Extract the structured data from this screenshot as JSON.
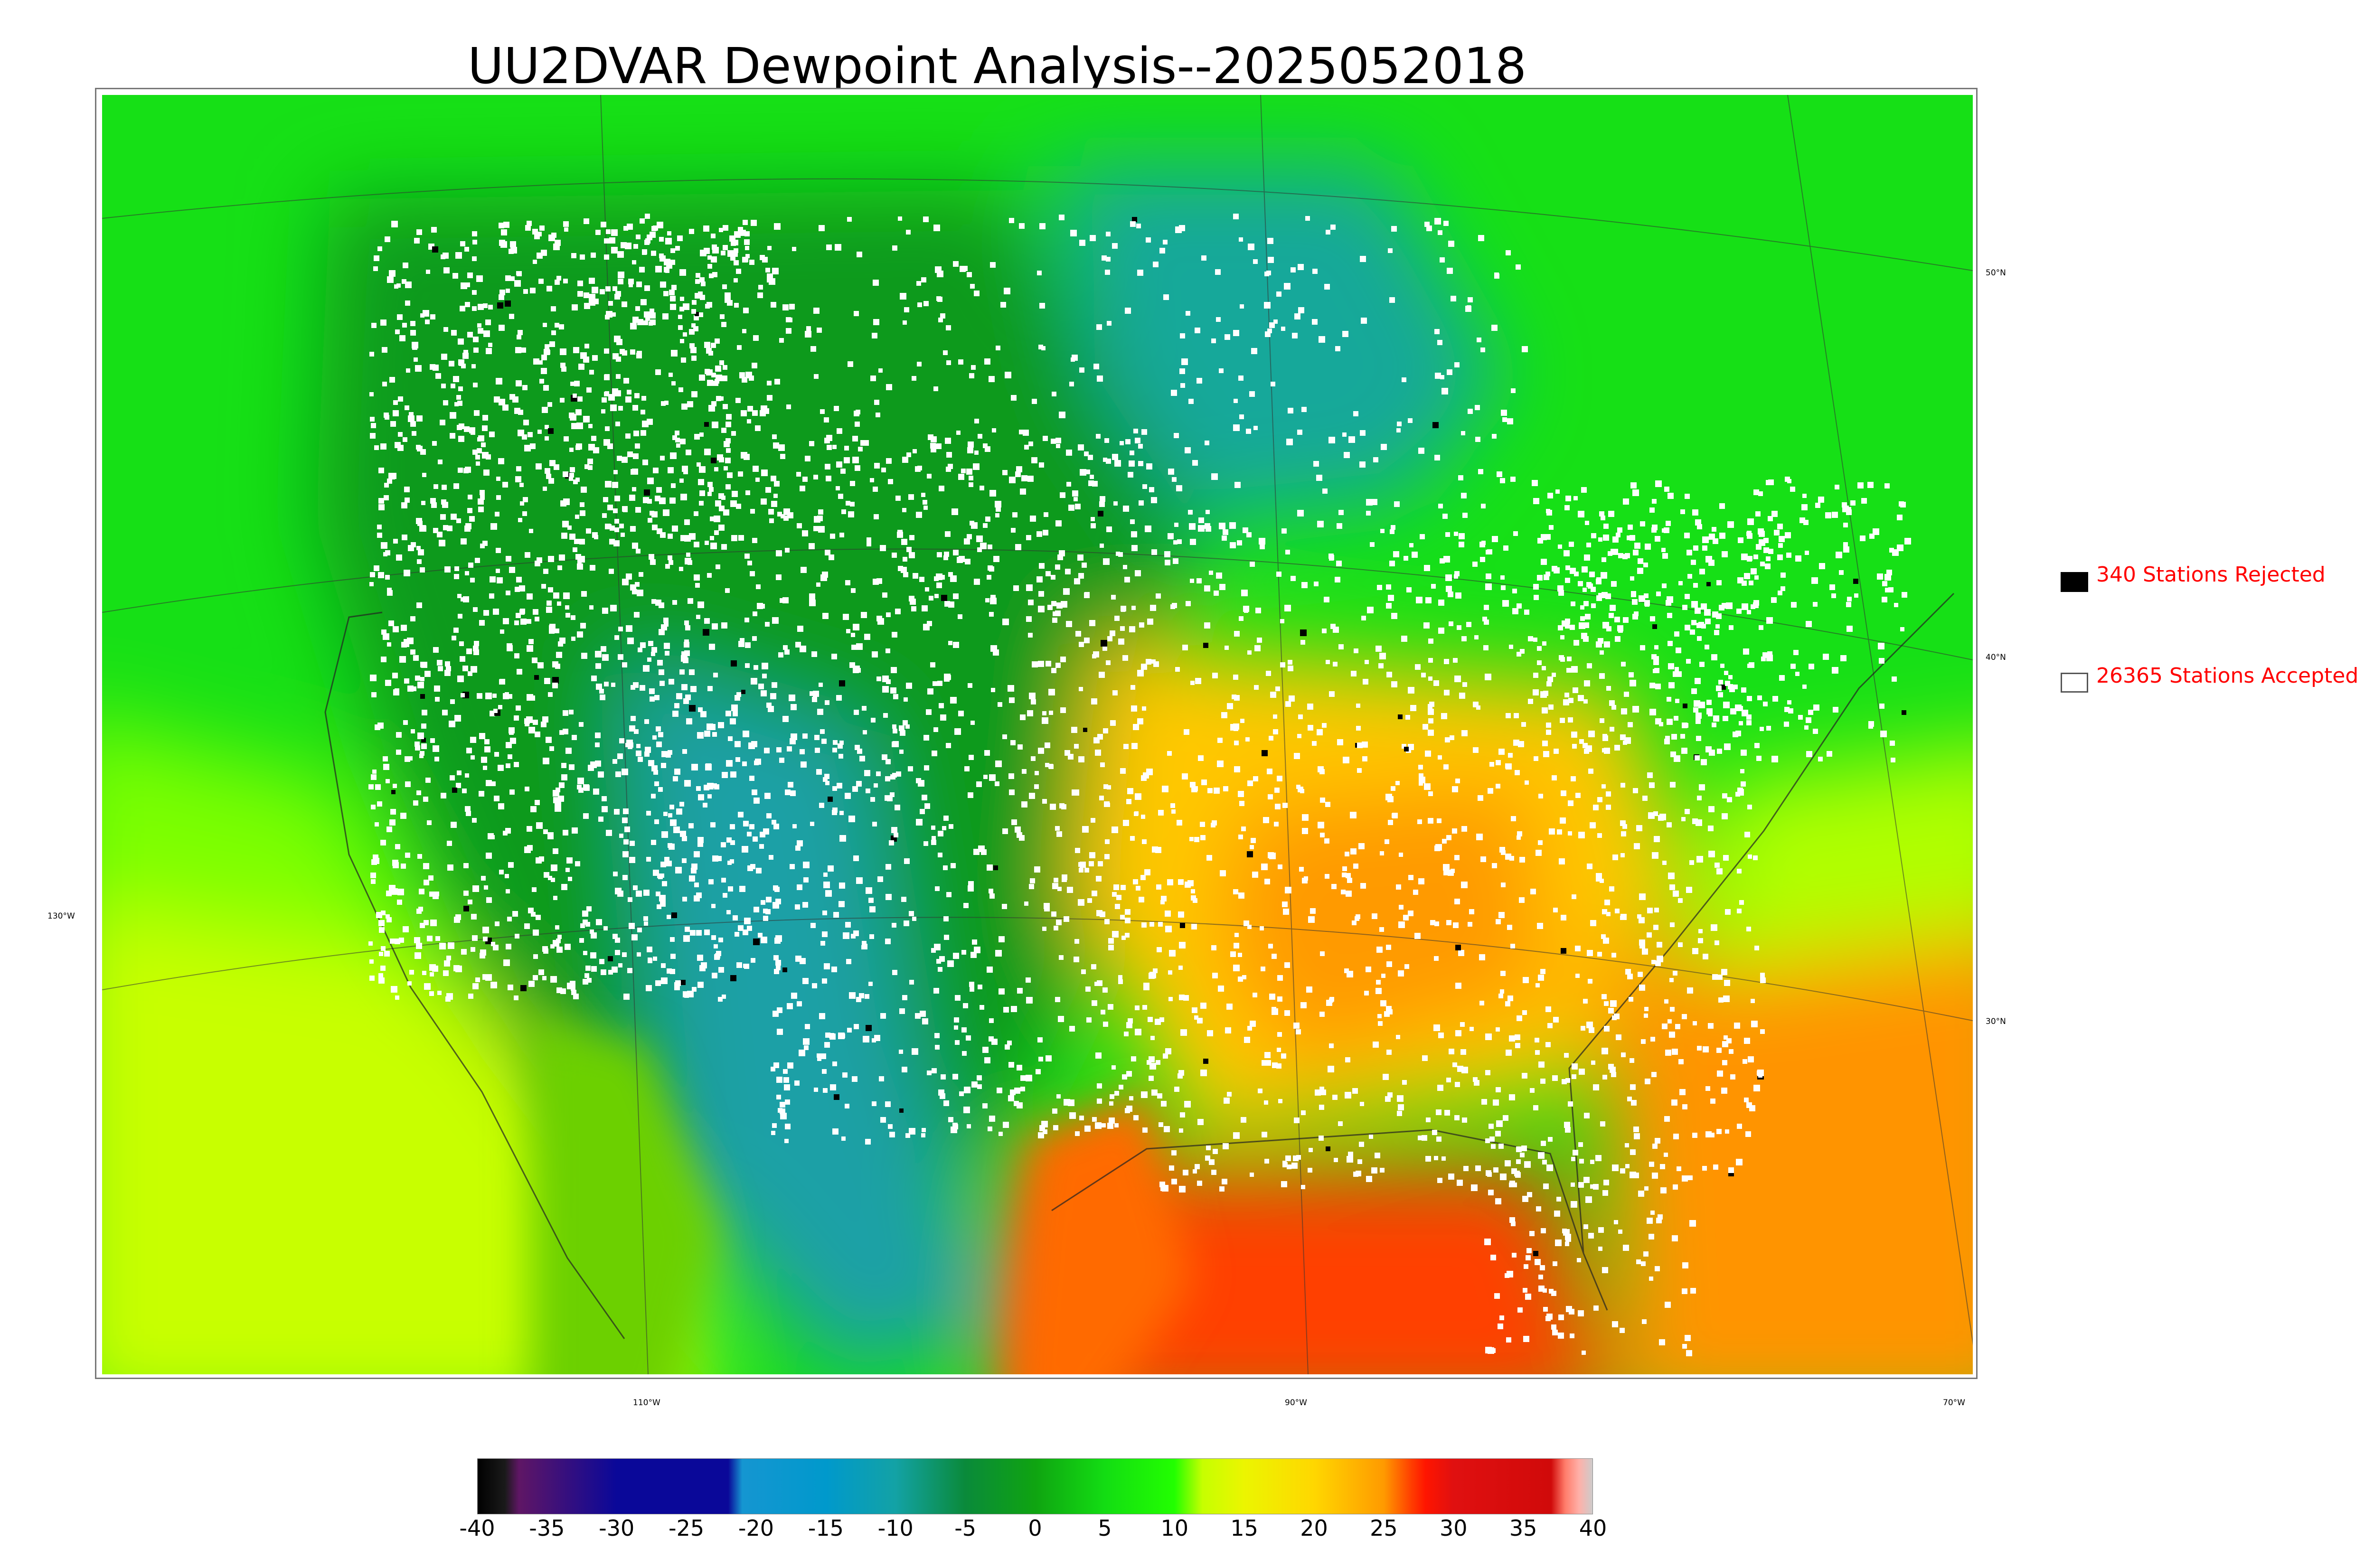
{
  "title": "UU2DVAR Dewpoint Analysis--2025052018",
  "legend": {
    "rejected_label": "340 Stations Rejected",
    "accepted_label": "26365 Stations Accepted",
    "rejected_color": "#000000",
    "accepted_color": "#ffffff",
    "text_color": "#ff0000"
  },
  "graticule": {
    "lat_labels": [
      "50°N",
      "40°N",
      "30°N"
    ],
    "lon_labels": [
      "130°W",
      "110°W",
      "90°W",
      "70°W"
    ]
  },
  "colorbar": {
    "min": -40,
    "max": 40,
    "tick_labels": [
      "-40",
      "-35",
      "-30",
      "-25",
      "-20",
      "-15",
      "-10",
      "-5",
      "0",
      "5",
      "10",
      "15",
      "20",
      "25",
      "30",
      "35",
      "40"
    ],
    "colors": [
      {
        "value": -40,
        "color": "#000000"
      },
      {
        "value": -38,
        "color": "#1a1a1a"
      },
      {
        "value": -37,
        "color": "#5f1665"
      },
      {
        "value": -30,
        "color": "#0a0899"
      },
      {
        "value": -22,
        "color": "#0a0899"
      },
      {
        "value": -21,
        "color": "#1596d1"
      },
      {
        "value": -15,
        "color": "#0099cc"
      },
      {
        "value": -10,
        "color": "#13a2a5"
      },
      {
        "value": -5,
        "color": "#0a8a3a"
      },
      {
        "value": 0,
        "color": "#0fa411"
      },
      {
        "value": 5,
        "color": "#13dd13"
      },
      {
        "value": 10,
        "color": "#22ff00"
      },
      {
        "value": 12,
        "color": "#c6ff00"
      },
      {
        "value": 15,
        "color": "#ecf500"
      },
      {
        "value": 20,
        "color": "#ffd700"
      },
      {
        "value": 25,
        "color": "#ff9a00"
      },
      {
        "value": 27,
        "color": "#ff3d00"
      },
      {
        "value": 28,
        "color": "#ff1500"
      },
      {
        "value": 30,
        "color": "#e01010"
      },
      {
        "value": 37,
        "color": "#d00a0a"
      },
      {
        "value": 38,
        "color": "#ff7c6a"
      },
      {
        "value": 39,
        "color": "#ffb0a8"
      },
      {
        "value": 40,
        "color": "#cccccc"
      }
    ]
  },
  "field_colors": {
    "ocean_north": "#12e012",
    "ocean_pacific_south": "#c8ff00",
    "ocean_gulf": "#ff4400",
    "atlantic_south": "#ff9400",
    "land_west": "#0e9a1c",
    "dry_southwest": "#1ba0a6",
    "canada_cold": "#16a8a0",
    "southeast": "#ffc800",
    "texas": "#ff6a00"
  }
}
